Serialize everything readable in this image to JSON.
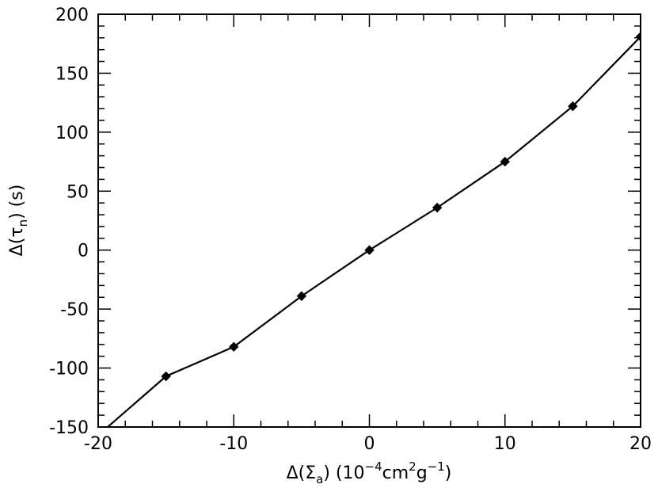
{
  "chart_data": {
    "type": "line",
    "title": "",
    "xlabel": {
      "base": "Δ(Σ",
      "base_sub": "a",
      "mid": ") (10",
      "sup1": "−4",
      "mid2": "cm",
      "sup2": "2",
      "mid3": "g",
      "sup3": "−1",
      "end": ")"
    },
    "ylabel": {
      "base": "Δ(τ",
      "base_sub": "n",
      "end": ") (s)"
    },
    "xlim": [
      -20,
      20
    ],
    "ylim": [
      -150,
      200
    ],
    "xticks": [
      -20,
      -10,
      0,
      10,
      20
    ],
    "xtick_labels": [
      "-20",
      "-10",
      "0",
      "10",
      "20"
    ],
    "yticks": [
      -150,
      -100,
      -50,
      0,
      50,
      100,
      150,
      200
    ],
    "ytick_labels": [
      "-150",
      "-100",
      "-50",
      "0",
      "50",
      "100",
      "150",
      "200"
    ],
    "x_minor_step": 2,
    "y_minor_step": 10,
    "grid": false,
    "marker": "diamond",
    "series": [
      {
        "x": [
          -20,
          -15,
          -10,
          -5,
          0,
          5,
          10,
          15,
          20
        ],
        "y": [
          -157,
          -107,
          -82,
          -39,
          0,
          36,
          75,
          122,
          181
        ]
      }
    ],
    "colors": {
      "line": "#000000",
      "marker": "#000000"
    }
  }
}
